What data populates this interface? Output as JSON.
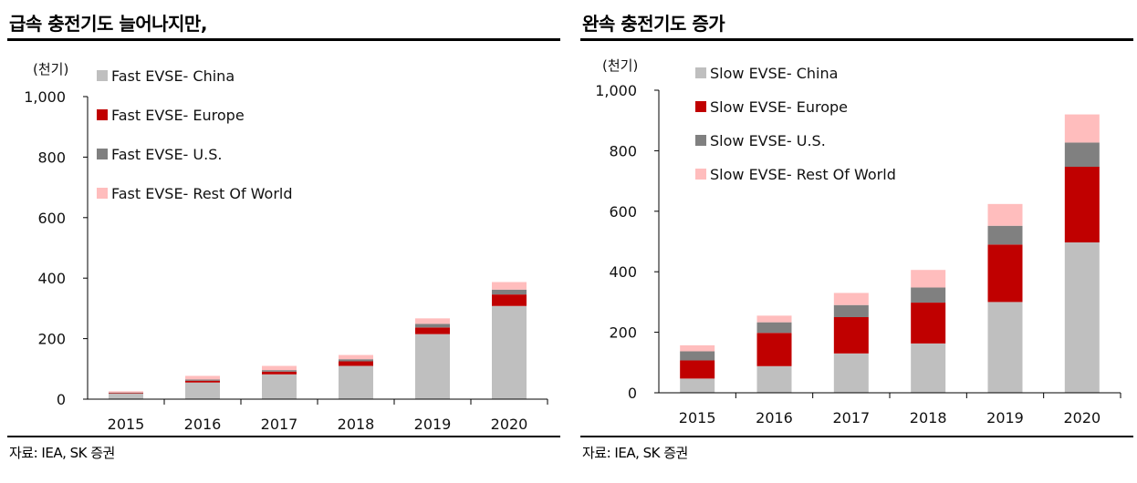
{
  "colors": {
    "china": "#bfbfbf",
    "europe": "#c00000",
    "us": "#808080",
    "row": "#ffbdbd",
    "axis": "#000000",
    "rule": "#000000"
  },
  "left": {
    "title": "급속 충전기도 늘어나지만,",
    "source": "자료: IEA, SK 증권",
    "chart_data": {
      "type": "bar",
      "stacked": true,
      "unit_label": "(천기)",
      "categories": [
        "2015",
        "2016",
        "2017",
        "2018",
        "2019",
        "2020"
      ],
      "ylim": [
        0,
        1000
      ],
      "yticks": [
        0,
        200,
        400,
        600,
        800,
        1000
      ],
      "ytick_labels": [
        "0",
        "200",
        "400",
        "600",
        "800",
        "1,000"
      ],
      "legend_position": "top-left",
      "series": [
        {
          "name": "Fast EVSE- China",
          "color": "#bfbfbf",
          "values": [
            18,
            55,
            82,
            110,
            215,
            308
          ]
        },
        {
          "name": "Fast EVSE- Europe",
          "color": "#c00000",
          "values": [
            2,
            6,
            9,
            15,
            22,
            38
          ]
        },
        {
          "name": "Fast EVSE- U.S.",
          "color": "#808080",
          "values": [
            2,
            4,
            5,
            7,
            12,
            16
          ]
        },
        {
          "name": "Fast EVSE- Rest Of World",
          "color": "#ffbdbd",
          "values": [
            4,
            12,
            14,
            14,
            18,
            25
          ]
        }
      ]
    }
  },
  "right": {
    "title": "완속 충전기도 증가",
    "source": "자료: IEA, SK 증권",
    "chart_data": {
      "type": "bar",
      "stacked": true,
      "unit_label": "(천기)",
      "categories": [
        "2015",
        "2016",
        "2017",
        "2018",
        "2019",
        "2020"
      ],
      "ylim": [
        0,
        1000
      ],
      "yticks": [
        0,
        200,
        400,
        600,
        800,
        1000
      ],
      "ytick_labels": [
        "0",
        "200",
        "400",
        "600",
        "800",
        "1,000"
      ],
      "legend_position": "top-left",
      "series": [
        {
          "name": "Slow EVSE- China",
          "color": "#bfbfbf",
          "values": [
            47,
            88,
            130,
            163,
            300,
            497
          ]
        },
        {
          "name": "Slow EVSE- Europe",
          "color": "#c00000",
          "values": [
            60,
            110,
            120,
            135,
            190,
            250
          ]
        },
        {
          "name": "Slow EVSE- U.S.",
          "color": "#808080",
          "values": [
            30,
            35,
            40,
            50,
            62,
            80
          ]
        },
        {
          "name": "Slow EVSE- Rest Of World",
          "color": "#ffbdbd",
          "values": [
            20,
            22,
            40,
            58,
            72,
            93
          ]
        }
      ]
    }
  }
}
